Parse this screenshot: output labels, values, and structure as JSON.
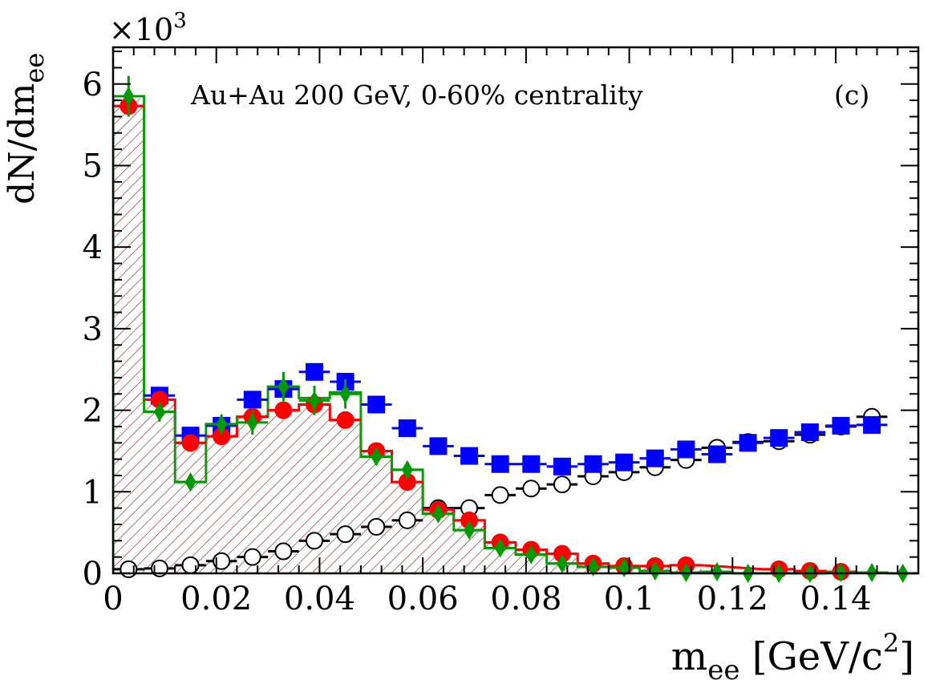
{
  "chart_data": {
    "type": "scatter",
    "title": "",
    "annotation": "Au+Au 200 GeV, 0-60% centrality",
    "panel_label": "(c)",
    "xlabel": {
      "main": "m",
      "sub": "ee",
      "rest": " [GeV/c",
      "sup": "2",
      "end": "]"
    },
    "ylabel": {
      "main": "dN/dm",
      "sub": "ee"
    },
    "y_multiplier": {
      "prefix": "×10",
      "sup": "3"
    },
    "xlim": [
      0,
      0.156
    ],
    "ylim": [
      0,
      6.45
    ],
    "x_ticks": [
      0,
      0.02,
      0.04,
      0.06,
      0.08,
      0.1,
      0.12,
      0.14
    ],
    "x_tick_labels": [
      "0",
      "0.02",
      "0.04",
      "0.06",
      "0.08",
      "0.1",
      "0.12",
      "0.14"
    ],
    "y_ticks": [
      0,
      1,
      2,
      3,
      4,
      5,
      6
    ],
    "y_tick_labels": [
      "0",
      "1",
      "2",
      "3",
      "4",
      "5",
      "6"
    ],
    "bin_width": 0.006,
    "hatched_histogram": {
      "color": "#800000",
      "bins": [
        0,
        0.006,
        0.012,
        0.018,
        0.024,
        0.03,
        0.036,
        0.042,
        0.048,
        0.054,
        0.06,
        0.066,
        0.072,
        0.078,
        0.084,
        0.09,
        0.096,
        0.102,
        0.108,
        0.114,
        0.12,
        0.126,
        0.132,
        0.138,
        0.144,
        0.15,
        0.156
      ],
      "values": [
        5.82,
        2.12,
        1.6,
        1.72,
        1.95,
        2.02,
        2.05,
        1.92,
        1.5,
        1.12,
        0.78,
        0.65,
        0.38,
        0.3,
        0.22,
        0.12,
        0.1,
        0.1,
        0.1,
        0.02,
        0.02,
        0.02,
        0.05,
        0.03,
        0.02,
        0.02
      ]
    },
    "series": [
      {
        "marker": "open-circle",
        "color": "#000000",
        "x": [
          0.003,
          0.009,
          0.015,
          0.021,
          0.027,
          0.033,
          0.039,
          0.045,
          0.051,
          0.057,
          0.063,
          0.069,
          0.075,
          0.081,
          0.087,
          0.093,
          0.099,
          0.105,
          0.111,
          0.117,
          0.123,
          0.129,
          0.135,
          0.141,
          0.147
        ],
        "y": [
          0.05,
          0.06,
          0.1,
          0.15,
          0.2,
          0.27,
          0.4,
          0.48,
          0.57,
          0.65,
          0.8,
          0.8,
          0.96,
          1.04,
          1.09,
          1.19,
          1.24,
          1.3,
          1.39,
          1.54,
          1.61,
          1.62,
          1.7,
          1.8,
          1.92
        ]
      },
      {
        "marker": "filled-square",
        "color": "#0000ff",
        "x": [
          0.009,
          0.015,
          0.021,
          0.027,
          0.033,
          0.039,
          0.045,
          0.051,
          0.057,
          0.063,
          0.069,
          0.075,
          0.081,
          0.087,
          0.093,
          0.099,
          0.105,
          0.111,
          0.117,
          0.123,
          0.129,
          0.135,
          0.141,
          0.147
        ],
        "y": [
          2.18,
          1.69,
          1.81,
          2.13,
          2.26,
          2.47,
          2.35,
          2.07,
          1.78,
          1.56,
          1.44,
          1.34,
          1.34,
          1.31,
          1.34,
          1.36,
          1.41,
          1.52,
          1.46,
          1.6,
          1.66,
          1.73,
          1.81,
          1.82
        ]
      },
      {
        "marker": "filled-circle",
        "color": "#ff0000",
        "step_color": "#ff0000",
        "x": [
          0.003,
          0.009,
          0.015,
          0.021,
          0.027,
          0.033,
          0.039,
          0.045,
          0.051,
          0.057,
          0.063,
          0.069,
          0.075,
          0.081,
          0.087,
          0.093,
          0.099,
          0.105,
          0.111,
          0.129,
          0.135,
          0.141
        ],
        "y": [
          5.73,
          2.13,
          1.6,
          1.68,
          1.92,
          2.0,
          2.07,
          1.88,
          1.5,
          1.12,
          0.78,
          0.65,
          0.38,
          0.29,
          0.24,
          0.12,
          0.09,
          0.09,
          0.1,
          0.05,
          0.03,
          0.02
        ]
      },
      {
        "marker": "filled-diamond",
        "color": "#009900",
        "step_color": "#119911",
        "x": [
          0.003,
          0.009,
          0.015,
          0.021,
          0.027,
          0.033,
          0.039,
          0.045,
          0.051,
          0.057,
          0.063,
          0.069,
          0.075,
          0.081,
          0.087,
          0.093,
          0.099,
          0.105,
          0.111,
          0.117,
          0.123,
          0.129,
          0.135,
          0.141,
          0.147,
          0.153
        ],
        "y": [
          5.85,
          1.98,
          1.12,
          1.83,
          1.85,
          2.29,
          2.12,
          2.2,
          1.43,
          1.27,
          0.73,
          0.53,
          0.31,
          0.23,
          0.12,
          0.08,
          0.07,
          0.03,
          0.01,
          0.02,
          0.0,
          0.0,
          0.0,
          0.01,
          0.01,
          0.0
        ],
        "yerr": [
          0.25,
          0.12,
          0.1,
          0.12,
          0.15,
          0.18,
          0.18,
          0.18,
          0.1,
          0.1,
          0.08,
          0.07,
          0.06,
          0.06,
          0.05,
          0.05,
          0.04,
          0.04,
          0.04,
          0.04,
          0.03,
          0.03,
          0.03,
          0.03,
          0.03,
          0.03
        ],
        "step_values": [
          5.85,
          1.98,
          1.12,
          1.83,
          1.92,
          2.29,
          2.15,
          2.22,
          1.43,
          1.27,
          0.73,
          0.53,
          0.31,
          0.23,
          0.12,
          0.08,
          0.07,
          0.03,
          0.01,
          0.02,
          0.0,
          0.0,
          0.0,
          0.01,
          0.01,
          0.0
        ]
      }
    ]
  }
}
